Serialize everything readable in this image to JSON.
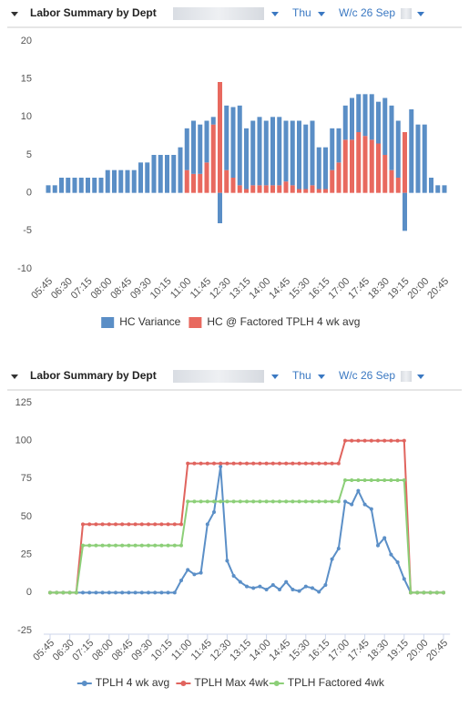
{
  "chart_data": [
    {
      "type": "bar",
      "title": "Labor Summary by Dept",
      "filters": [
        "Thu",
        "W/c 26 Sep"
      ],
      "stacked": true,
      "legend": "bottom",
      "grid": false,
      "categories": [
        "05:45",
        null,
        null,
        "06:30",
        null,
        null,
        "07:15",
        null,
        null,
        "08:00",
        null,
        null,
        "08:45",
        null,
        null,
        "09:30",
        null,
        null,
        "10:15",
        null,
        null,
        "11:00",
        null,
        null,
        "11:45",
        null,
        null,
        "12:30",
        null,
        null,
        "13:15",
        null,
        null,
        "14:00",
        null,
        null,
        "14:45",
        null,
        null,
        "15:30",
        null,
        null,
        "16:15",
        null,
        null,
        "17:00",
        null,
        null,
        "17:45",
        null,
        null,
        "18:30",
        null,
        null,
        "19:15",
        null,
        null,
        "20:00",
        null,
        null,
        "20:45"
      ],
      "ylim": [
        -10,
        20
      ],
      "yticks": [
        -10,
        -5,
        0,
        5,
        10,
        15,
        20
      ],
      "series": [
        {
          "name": "HC Variance",
          "color": "#5a8ec6",
          "values": [
            1,
            1,
            2,
            2,
            2,
            2,
            2,
            2,
            2,
            3,
            3,
            3,
            3,
            3,
            4,
            4,
            5,
            5,
            5,
            5,
            6,
            5.5,
            7,
            6.5,
            5.5,
            1,
            -4,
            8.5,
            9.3,
            10.5,
            8,
            8.5,
            9,
            8.5,
            9,
            9,
            8,
            8.5,
            9,
            8.5,
            8.5,
            5.5,
            5.5,
            5.5,
            4.5,
            4.5,
            5.5,
            5,
            5.5,
            6,
            5.5,
            7.5,
            8.5,
            7.5,
            -5,
            11,
            9,
            9,
            2,
            1,
            1
          ]
        },
        {
          "name": "HC @ Factored TPLH 4 wk avg",
          "color": "#e8695f",
          "values": [
            0,
            0,
            0,
            0,
            0,
            0,
            0,
            0,
            0,
            0,
            0,
            0,
            0,
            0,
            0,
            0,
            0,
            0,
            0,
            0,
            0,
            3,
            2.5,
            2.5,
            4,
            9,
            14.6,
            3,
            2,
            1,
            0.5,
            1,
            1,
            1,
            1,
            1,
            1.5,
            1,
            0.5,
            0.5,
            1,
            0.5,
            0.5,
            3,
            4,
            7,
            7,
            8,
            7.5,
            7,
            6.5,
            5,
            3,
            2,
            8,
            0,
            0,
            0,
            0,
            0,
            0
          ]
        }
      ]
    },
    {
      "type": "line",
      "title": "Labor Summary by Dept",
      "filters": [
        "Thu",
        "W/c 26 Sep"
      ],
      "legend": "bottom",
      "grid": false,
      "categories": [
        "05:45",
        null,
        null,
        "06:30",
        null,
        null,
        "07:15",
        null,
        null,
        "08:00",
        null,
        null,
        "08:45",
        null,
        null,
        "09:30",
        null,
        null,
        "10:15",
        null,
        null,
        "11:00",
        null,
        null,
        "11:45",
        null,
        null,
        "12:30",
        null,
        null,
        "13:15",
        null,
        null,
        "14:00",
        null,
        null,
        "14:45",
        null,
        null,
        "15:30",
        null,
        null,
        "16:15",
        null,
        null,
        "17:00",
        null,
        null,
        "17:45",
        null,
        null,
        "18:30",
        null,
        null,
        "19:15",
        null,
        null,
        "20:00",
        null,
        null,
        "20:45"
      ],
      "ylim": [
        -25,
        125
      ],
      "yticks": [
        -25,
        0,
        25,
        50,
        75,
        100,
        125
      ],
      "series": [
        {
          "name": "TPLH 4 wk avg",
          "color": "#5b8fc7",
          "values": [
            0,
            0,
            0,
            0,
            0,
            0,
            0,
            0,
            0,
            0,
            0,
            0,
            0,
            0,
            0,
            0,
            0,
            0,
            0,
            0,
            8,
            15,
            12,
            13,
            45,
            53,
            83,
            21,
            11,
            7,
            4,
            3,
            4,
            2,
            5,
            2,
            7,
            2,
            1,
            4,
            3,
            0.5,
            5,
            22,
            29,
            60,
            58,
            67,
            58,
            55,
            31,
            36,
            25,
            20,
            9,
            0,
            0,
            0,
            0,
            0,
            0
          ]
        },
        {
          "name": "TPLH Max 4wk",
          "color": "#e0645e",
          "values": [
            0,
            0,
            0,
            0,
            0,
            45,
            45,
            45,
            45,
            45,
            45,
            45,
            45,
            45,
            45,
            45,
            45,
            45,
            45,
            45,
            45,
            85,
            85,
            85,
            85,
            85,
            85,
            85,
            85,
            85,
            85,
            85,
            85,
            85,
            85,
            85,
            85,
            85,
            85,
            85,
            85,
            85,
            85,
            85,
            85,
            100,
            100,
            100,
            100,
            100,
            100,
            100,
            100,
            100,
            100,
            0,
            0,
            0,
            0,
            0,
            0
          ]
        },
        {
          "name": "TPLH Factored 4wk",
          "color": "#8ccf78",
          "values": [
            0,
            0,
            0,
            0,
            0,
            31,
            31,
            31,
            31,
            31,
            31,
            31,
            31,
            31,
            31,
            31,
            31,
            31,
            31,
            31,
            31,
            60,
            60,
            60,
            60,
            60,
            60,
            60,
            60,
            60,
            60,
            60,
            60,
            60,
            60,
            60,
            60,
            60,
            60,
            60,
            60,
            60,
            60,
            60,
            60,
            74,
            74,
            74,
            74,
            74,
            74,
            74,
            74,
            74,
            74,
            0,
            0,
            0,
            0,
            0,
            0
          ]
        }
      ]
    }
  ]
}
